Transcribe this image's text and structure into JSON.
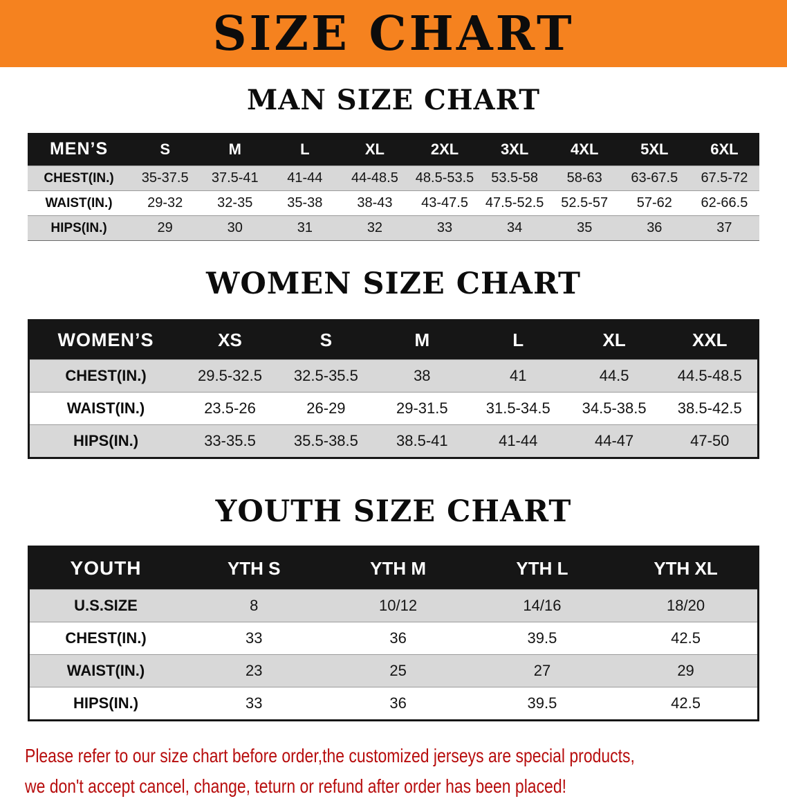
{
  "banner": {
    "title": "SIZE CHART"
  },
  "men": {
    "heading": "MAN SIZE CHART",
    "table": {
      "header": [
        "MEN’S",
        "S",
        "M",
        "L",
        "XL",
        "2XL",
        "3XL",
        "4XL",
        "5XL",
        "6XL"
      ],
      "rows": [
        [
          "CHEST(IN.)",
          "35-37.5",
          "37.5-41",
          "41-44",
          "44-48.5",
          "48.5-53.5",
          "53.5-58",
          "58-63",
          "63-67.5",
          "67.5-72"
        ],
        [
          "WAIST(IN.)",
          "29-32",
          "32-35",
          "35-38",
          "38-43",
          "43-47.5",
          "47.5-52.5",
          "52.5-57",
          "57-62",
          "62-66.5"
        ],
        [
          "HIPS(IN.)",
          "29",
          "30",
          "31",
          "32",
          "33",
          "34",
          "35",
          "36",
          "37"
        ]
      ]
    }
  },
  "women": {
    "heading": "WOMEN SIZE CHART",
    "table": {
      "header": [
        "WOMEN’S",
        "XS",
        "S",
        "M",
        "L",
        "XL",
        "XXL"
      ],
      "rows": [
        [
          "CHEST(IN.)",
          "29.5-32.5",
          "32.5-35.5",
          "38",
          "41",
          "44.5",
          "44.5-48.5"
        ],
        [
          "WAIST(IN.)",
          "23.5-26",
          "26-29",
          "29-31.5",
          "31.5-34.5",
          "34.5-38.5",
          "38.5-42.5"
        ],
        [
          "HIPS(IN.)",
          "33-35.5",
          "35.5-38.5",
          "38.5-41",
          "41-44",
          "44-47",
          "47-50"
        ]
      ]
    }
  },
  "youth": {
    "heading": "YOUTH SIZE CHART",
    "table": {
      "header": [
        "YOUTH",
        "YTH S",
        "YTH M",
        "YTH L",
        "YTH XL"
      ],
      "rows": [
        [
          "U.S.SIZE",
          "8",
          "10/12",
          "14/16",
          "18/20"
        ],
        [
          "CHEST(IN.)",
          "33",
          "36",
          "39.5",
          "42.5"
        ],
        [
          "WAIST(IN.)",
          "23",
          "25",
          "27",
          "29"
        ],
        [
          "HIPS(IN.)",
          "33",
          "36",
          "39.5",
          "42.5"
        ]
      ]
    }
  },
  "disclaimer": {
    "line1": "Please refer to our size chart before order,the customized jerseys are special products,",
    "line2": "we don't accept cancel, change, teturn or refund after order has been placed!"
  },
  "colors": {
    "banner_bg": "#f5821f",
    "table_header_bg": "#161616",
    "row_alt_bg": "#d8d8d8",
    "disclaimer_text": "#b70d0d"
  }
}
